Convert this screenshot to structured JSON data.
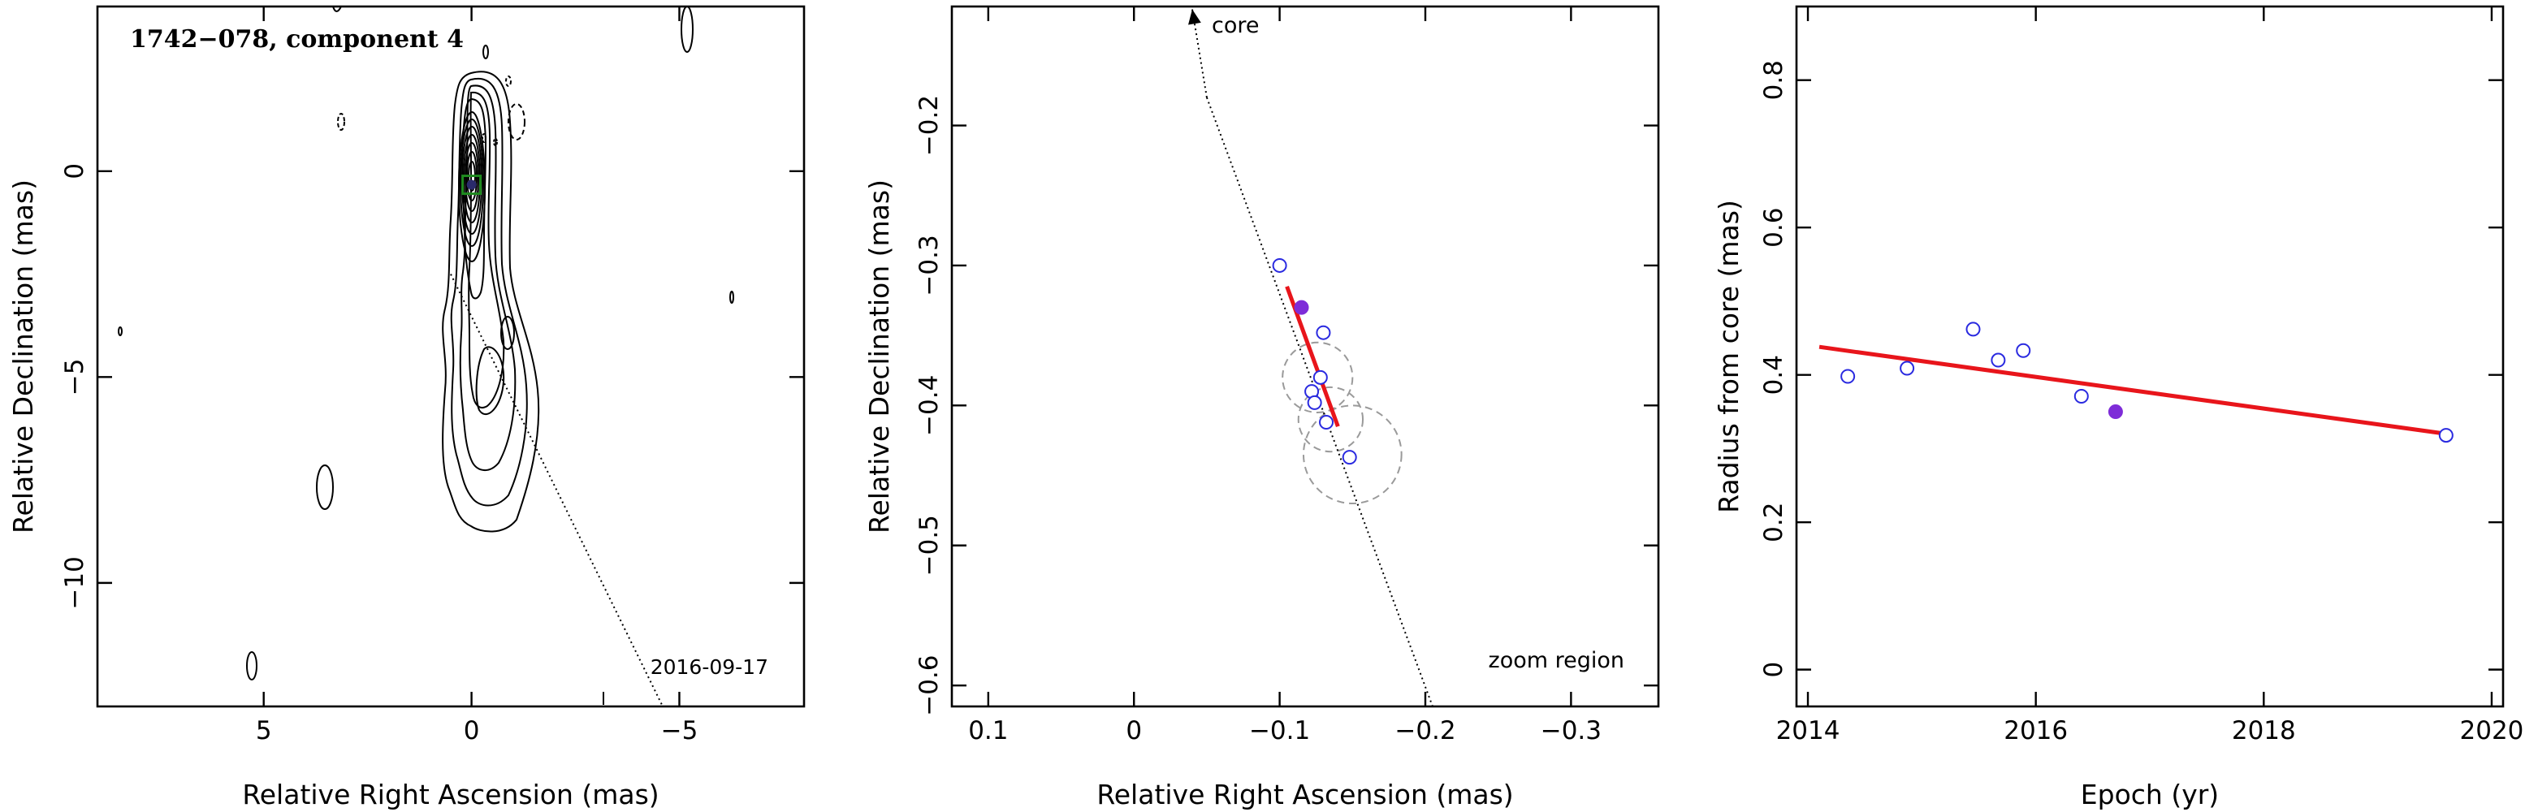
{
  "colors": {
    "axis": "#000000",
    "fit_line": "#e8151b",
    "open_marker": "#2a2ae0",
    "filled_marker": "#7e2cd8",
    "error_circle": "#9a9a9a",
    "box": "#1f8a1f"
  },
  "chart_data": [
    {
      "type": "contour",
      "title": "1742−078, component 4",
      "xlabel": "Relative Right Ascension (mas)",
      "ylabel": "Relative Declination (mas)",
      "xlim": [
        9,
        -8
      ],
      "ylim": [
        -13,
        4
      ],
      "xticks": [
        5,
        0,
        -5
      ],
      "xtick_labels": [
        "5",
        "0",
        "−5"
      ],
      "yticks": [
        0,
        -5,
        -10
      ],
      "ytick_labels": [
        "0",
        "−5",
        "−10"
      ],
      "annotation": "2016-09-17",
      "component_position": [
        0.0,
        -0.33
      ],
      "jet_track": [
        [
          0.5,
          -2.5
        ],
        [
          -4.6,
          -13
        ]
      ],
      "contour_levels": 12,
      "icons": [
        "green-box-icon",
        "filled-dot-icon"
      ]
    },
    {
      "type": "scatter",
      "xlabel": "Relative Right Ascension (mas)",
      "ylabel": "Relative Declination (mas)",
      "xlim": [
        0.125,
        -0.36
      ],
      "ylim": [
        -0.615,
        -0.115
      ],
      "xticks": [
        0.1,
        0,
        -0.1,
        -0.2,
        -0.3
      ],
      "xtick_labels": [
        "0.1",
        "0",
        "−0.1",
        "−0.2",
        "−0.3"
      ],
      "yticks": [
        -0.2,
        -0.3,
        -0.4,
        -0.5,
        -0.6
      ],
      "ytick_labels": [
        "−0.2",
        "−0.3",
        "−0.4",
        "−0.5",
        "−0.6"
      ],
      "annotations": [
        "core",
        "zoom region"
      ],
      "core_arrow": [
        [
          -0.05,
          -0.18
        ],
        [
          -0.04,
          -0.117
        ]
      ],
      "track_line": [
        [
          -0.05,
          -0.18
        ],
        [
          -0.205,
          -0.615
        ]
      ],
      "fit_line": [
        [
          -0.105,
          -0.315
        ],
        [
          -0.14,
          -0.415
        ]
      ],
      "open_points": [
        {
          "x": -0.1,
          "y": -0.3
        },
        {
          "x": -0.13,
          "y": -0.348
        },
        {
          "x": -0.128,
          "y": -0.38
        },
        {
          "x": -0.122,
          "y": -0.39
        },
        {
          "x": -0.124,
          "y": -0.398
        },
        {
          "x": -0.132,
          "y": -0.412
        },
        {
          "x": -0.148,
          "y": -0.437
        }
      ],
      "filled_point": {
        "x": -0.115,
        "y": -0.33
      },
      "error_circles": [
        {
          "x": -0.126,
          "y": -0.38,
          "r": 0.025
        },
        {
          "x": -0.135,
          "y": -0.41,
          "r": 0.023
        },
        {
          "x": -0.15,
          "y": -0.435,
          "r": 0.035
        }
      ]
    },
    {
      "type": "scatter",
      "xlabel": "Epoch (yr)",
      "ylabel": "Radius from core (mas)",
      "xlim": [
        2013.9,
        2020.1
      ],
      "ylim": [
        -0.05,
        0.9
      ],
      "xticks": [
        2014,
        2016,
        2018,
        2020
      ],
      "xtick_labels": [
        "2014",
        "2016",
        "2018",
        "2020"
      ],
      "yticks": [
        0,
        0.2,
        0.4,
        0.6,
        0.8
      ],
      "ytick_labels": [
        "0",
        "0.2",
        "0.4",
        "0.6",
        "0.8"
      ],
      "open_points": [
        {
          "x": 2014.35,
          "y": 0.398
        },
        {
          "x": 2014.87,
          "y": 0.409
        },
        {
          "x": 2015.45,
          "y": 0.462
        },
        {
          "x": 2015.67,
          "y": 0.42
        },
        {
          "x": 2015.89,
          "y": 0.433
        },
        {
          "x": 2016.4,
          "y": 0.371
        },
        {
          "x": 2019.6,
          "y": 0.318
        }
      ],
      "filled_point": {
        "x": 2016.7,
        "y": 0.35
      },
      "fit_line": [
        [
          2014.1,
          0.438
        ],
        [
          2019.6,
          0.32
        ]
      ]
    }
  ]
}
